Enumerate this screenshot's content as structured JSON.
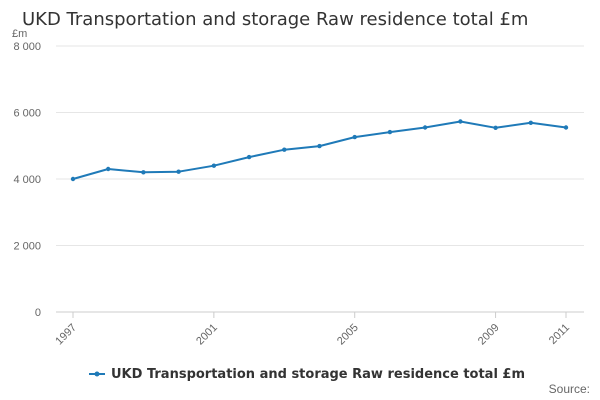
{
  "chart_data": {
    "type": "line",
    "title": "UKD Transportation and storage Raw residence total £m",
    "unit_label": "£m",
    "xlabel": "",
    "ylabel": "",
    "x": [
      1997,
      1998,
      1999,
      2000,
      2001,
      2002,
      2003,
      2004,
      2005,
      2006,
      2007,
      2008,
      2009,
      2010,
      2011
    ],
    "x_tick_labels": [
      "1997",
      "2001",
      "2005",
      "2009",
      "2011"
    ],
    "x_tick_values": [
      1997,
      2001,
      2005,
      2009,
      2011
    ],
    "y_tick_labels": [
      "0",
      "2 000",
      "4 000",
      "6 000",
      "8 000"
    ],
    "y_tick_values": [
      0,
      2000,
      4000,
      6000,
      8000
    ],
    "ylim": [
      0,
      8000
    ],
    "xlim": [
      1997,
      2011
    ],
    "grid": true,
    "legend_position": "bottom",
    "series": [
      {
        "name": "UKD Transportation and storage Raw residence total £m",
        "color": "#1f7ab8",
        "values": [
          4000,
          4300,
          4200,
          4220,
          4400,
          4660,
          4880,
          4990,
          5260,
          5410,
          5550,
          5730,
          5540,
          5690,
          5550
        ]
      }
    ]
  },
  "footer": {
    "source_label": "Source:"
  }
}
